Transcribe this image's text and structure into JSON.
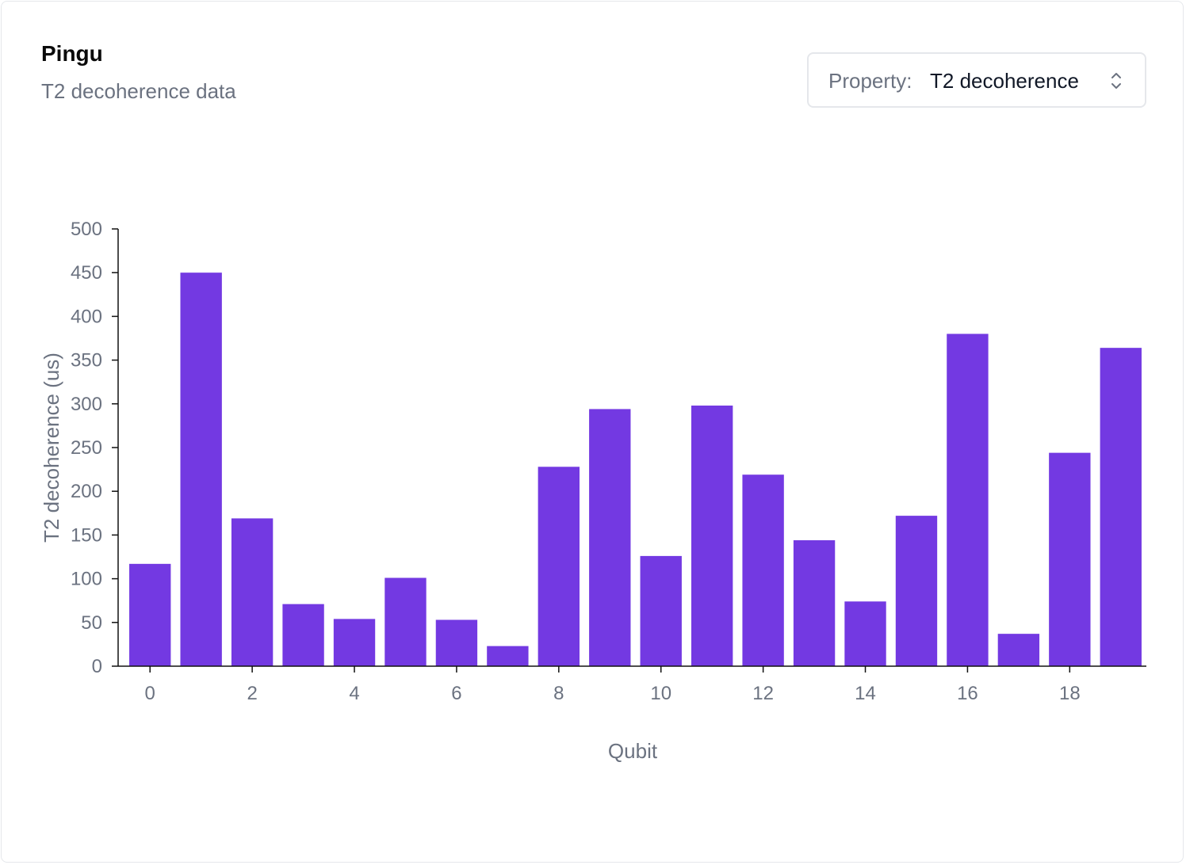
{
  "header": {
    "title": "Pingu",
    "subtitle": "T2 decoherence data"
  },
  "property_select": {
    "label": "Property:",
    "value": "T2 decoherence",
    "icon": "chevron-up-down-icon"
  },
  "colors": {
    "bar": "#7339e2",
    "axis": "#111111",
    "text_muted": "#6b7280"
  },
  "chart_data": {
    "type": "bar",
    "xlabel": "Qubit",
    "ylabel": "T2 decoherence (us)",
    "ylim": [
      0,
      500
    ],
    "yticks": [
      0,
      50,
      100,
      150,
      200,
      250,
      300,
      350,
      400,
      450,
      500
    ],
    "xticks": [
      0,
      2,
      4,
      6,
      8,
      10,
      12,
      14,
      16,
      18
    ],
    "categories": [
      0,
      1,
      2,
      3,
      4,
      5,
      6,
      7,
      8,
      9,
      10,
      11,
      12,
      13,
      14,
      15,
      16,
      17,
      18,
      19
    ],
    "values": [
      117,
      450,
      169,
      71,
      54,
      101,
      53,
      23,
      228,
      294,
      126,
      298,
      219,
      144,
      74,
      172,
      380,
      37,
      244,
      364
    ],
    "grid": false,
    "legend": "none"
  }
}
